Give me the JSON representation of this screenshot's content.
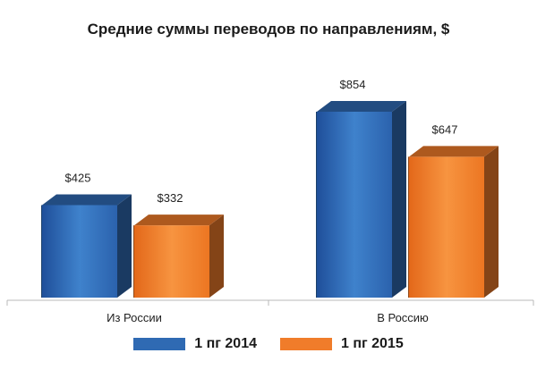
{
  "chart_data": {
    "type": "bar",
    "title": "Средние суммы переводов по направлениям, $",
    "categories": [
      "Из России",
      "В Россию"
    ],
    "series": [
      {
        "name": "1 пг 2014",
        "values": [
          425,
          854
        ],
        "labels": [
          "$425",
          "$854"
        ],
        "color": "#2f6ab3"
      },
      {
        "name": "1 пг 2015",
        "values": [
          332,
          647
        ],
        "labels": [
          "$332",
          "$647"
        ],
        "color": "#f07c2a"
      }
    ],
    "xlabel": "",
    "ylabel": "",
    "ylim": [
      0,
      854
    ],
    "grid": false,
    "legend_position": "bottom",
    "style": "3d"
  }
}
